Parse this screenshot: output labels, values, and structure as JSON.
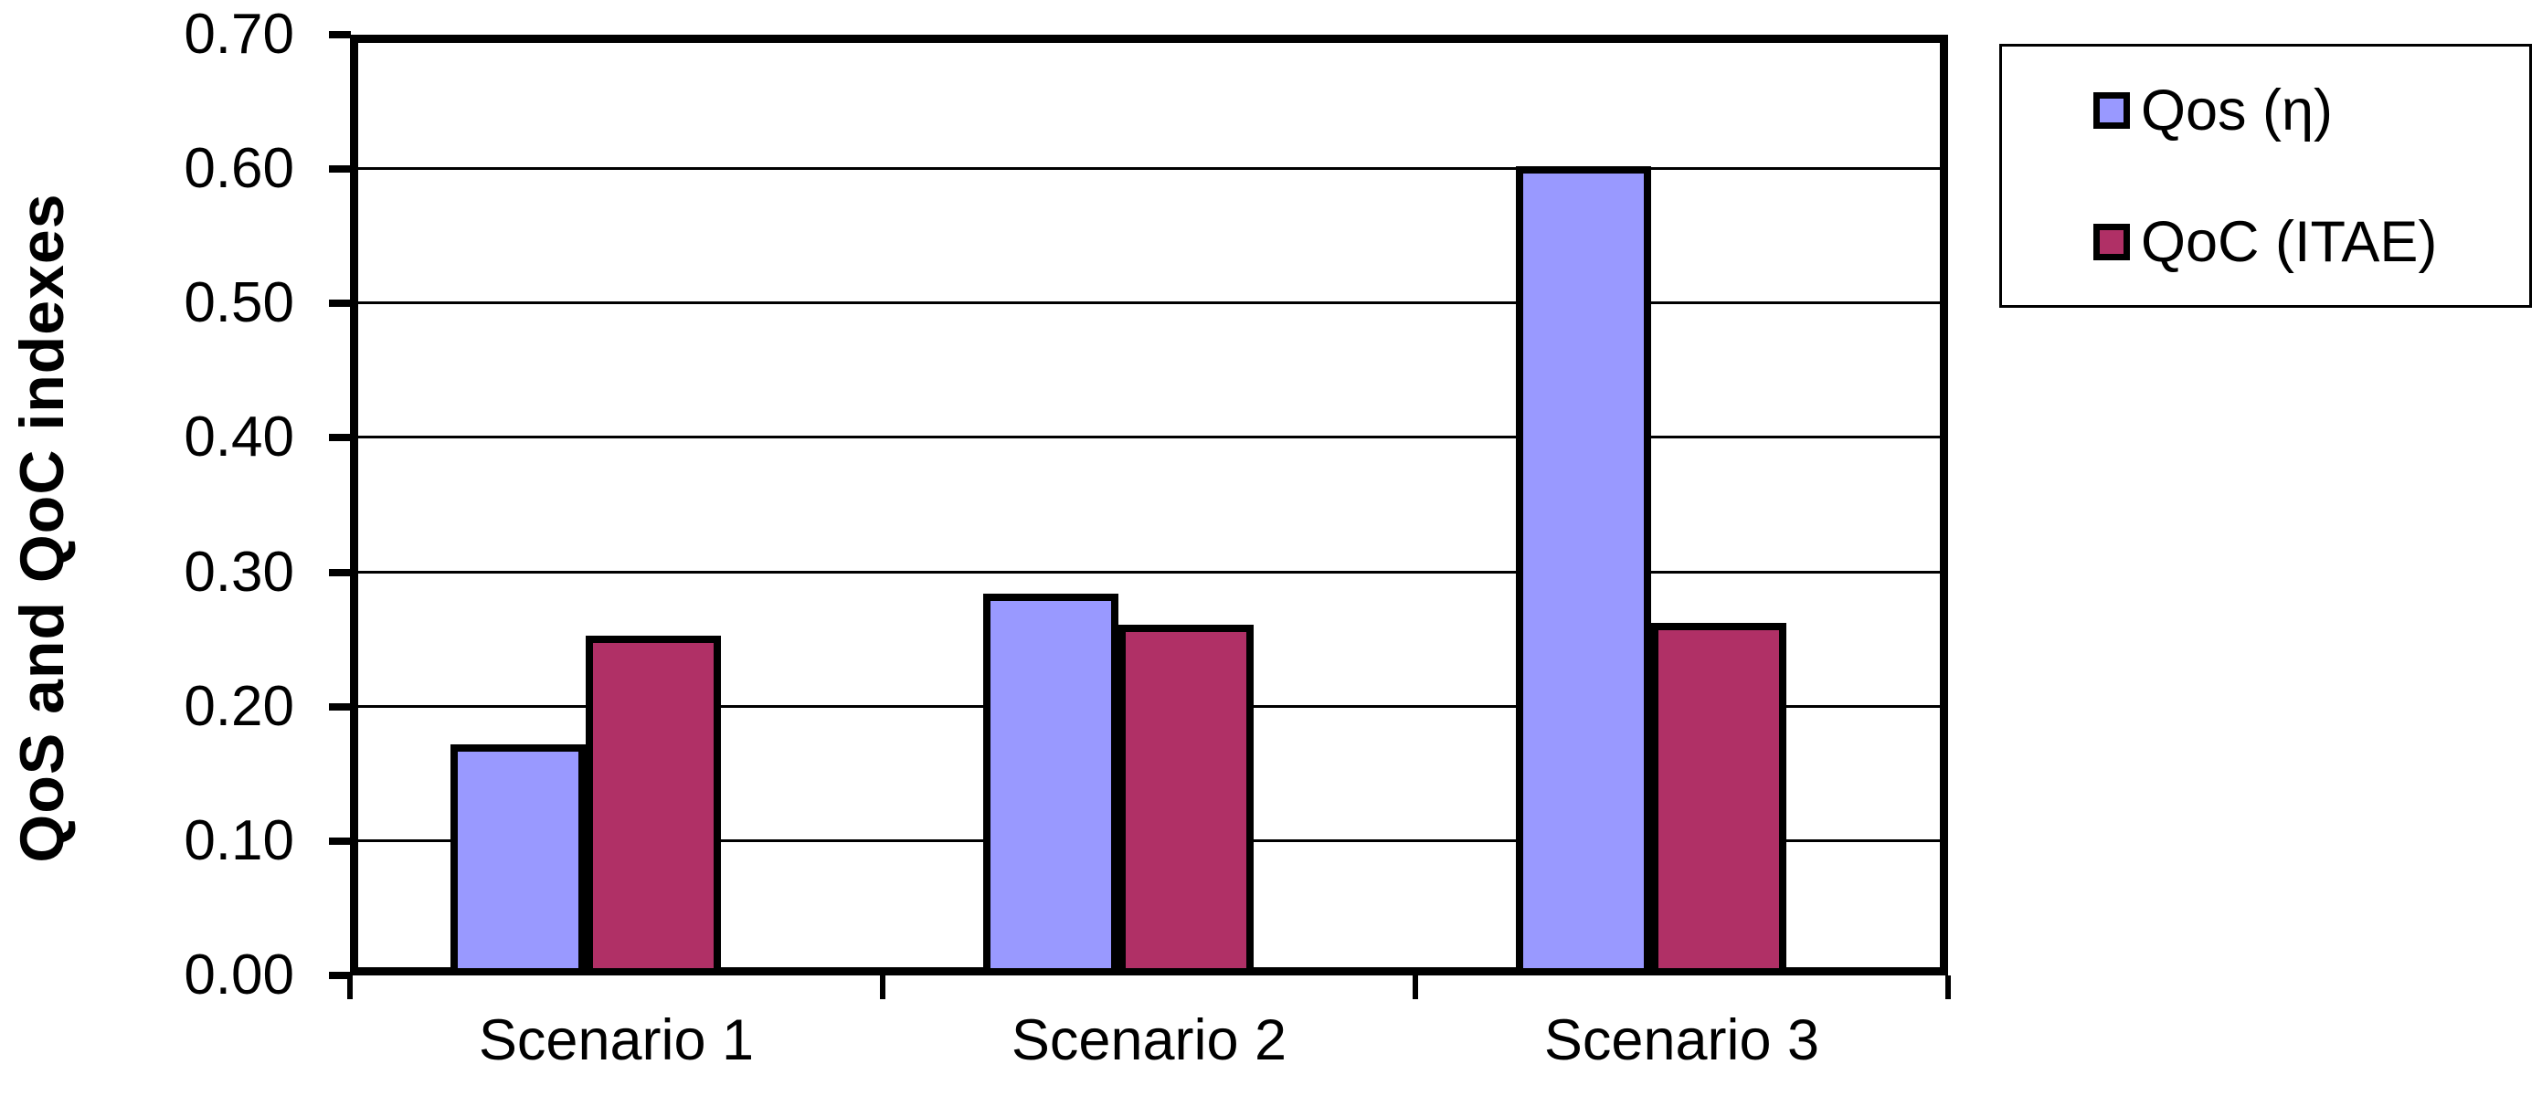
{
  "chart_data": {
    "type": "bar",
    "title": "",
    "categories": [
      "Scenario 1",
      "Scenario 2",
      "Scenario 3"
    ],
    "series": [
      {
        "name": "Qos (η)",
        "color": "#9999FF",
        "values": [
          0.172,
          0.284,
          0.602
        ]
      },
      {
        "name": "QoC (ITAE)",
        "color": "#B03066",
        "values": [
          0.253,
          0.261,
          0.262
        ]
      }
    ],
    "xlabel": "",
    "ylabel": "QoS and QoC indexes",
    "ylim": [
      0,
      0.7
    ],
    "ytick_labels": [
      "0.00",
      "0.10",
      "0.20",
      "0.30",
      "0.40",
      "0.50",
      "0.60",
      "0.70"
    ],
    "grid": true,
    "legend_position": "outside-top-right",
    "bar_border_color": "#000000",
    "axis_color": "#000000",
    "background": "#FFFFFF"
  }
}
